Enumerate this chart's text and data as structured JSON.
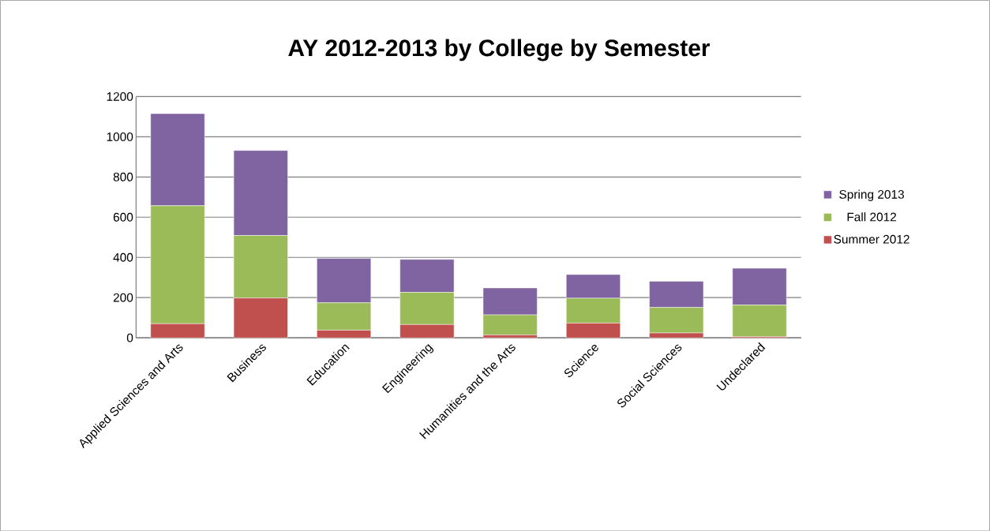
{
  "chart_data": {
    "type": "bar",
    "title": "AY 2012-2013 by College by Semester",
    "categories": [
      "Applied Sciences and Arts",
      "Business",
      "Education",
      "Engineering",
      "Humanities and the Arts",
      "Science",
      "Social Sciences",
      "Undeclared"
    ],
    "stacked": true,
    "series": [
      {
        "name": "Summer 2012",
        "color": "#c0504d",
        "values": [
          70,
          198,
          38,
          66,
          14,
          73,
          24,
          5
        ]
      },
      {
        "name": "Fall 2012",
        "color": "#9bbb59",
        "values": [
          587,
          311,
          136,
          160,
          100,
          124,
          127,
          158
        ]
      },
      {
        "name": "Spring 2013",
        "color": "#8064a2",
        "values": [
          458,
          423,
          221,
          164,
          134,
          118,
          130,
          183
        ]
      }
    ],
    "ylim": [
      0,
      1200
    ],
    "yticks": [
      0,
      200,
      400,
      600,
      800,
      1000,
      1200
    ],
    "grid": "y",
    "legend": "right"
  }
}
